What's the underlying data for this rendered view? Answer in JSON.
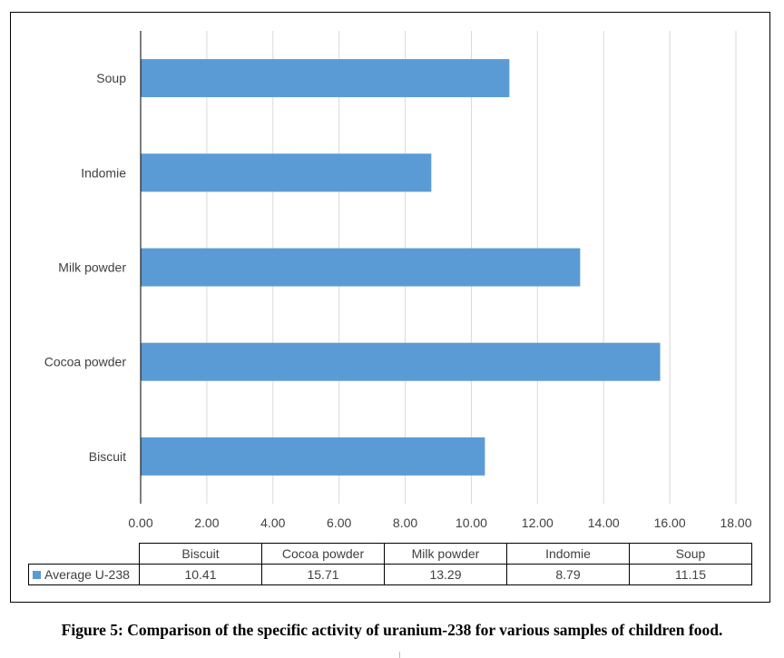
{
  "chart_data": {
    "type": "bar",
    "orientation": "horizontal",
    "categories": [
      "Biscuit",
      "Cocoa powder",
      "Milk powder",
      "Indomie",
      "Soup"
    ],
    "series": [
      {
        "name": "Average U-238",
        "values": [
          10.41,
          15.71,
          13.29,
          8.79,
          11.15
        ],
        "color": "#5b9bd5"
      }
    ],
    "xlim": [
      0,
      18
    ],
    "x_ticks": [
      "0.00",
      "2.00",
      "4.00",
      "6.00",
      "8.00",
      "10.00",
      "12.00",
      "14.00",
      "16.00",
      "18.00"
    ],
    "grid": "vertical",
    "legend": "in data table",
    "data_table": {
      "row_label": "Average U-238",
      "columns": [
        "Biscuit",
        "Cocoa powder",
        "Milk powder",
        "Indomie",
        "Soup"
      ],
      "values": [
        "10.41",
        "15.71",
        "13.29",
        "8.79",
        "11.15"
      ]
    }
  },
  "caption": "Figure 5: Comparison of the specific activity of uranium-238 for various samples of children food."
}
